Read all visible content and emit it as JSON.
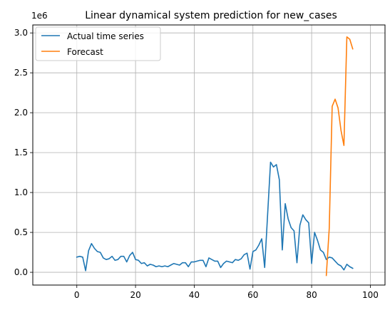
{
  "chart_data": {
    "type": "line",
    "title": "Linear dynamical system prediction for new_cases",
    "xlabel": "",
    "ylabel": "",
    "y_offset_text": "1e6",
    "xlim": [
      -15,
      105
    ],
    "ylim": [
      -0.16,
      3.1
    ],
    "x_ticks": [
      0,
      20,
      40,
      60,
      80,
      100
    ],
    "x_tick_labels": [
      "0",
      "20",
      "40",
      "60",
      "80",
      "100"
    ],
    "y_ticks": [
      0.0,
      0.5,
      1.0,
      1.5,
      2.0,
      2.5,
      3.0
    ],
    "y_tick_labels": [
      "0.0",
      "0.5",
      "1.0",
      "1.5",
      "2.0",
      "2.5",
      "3.0"
    ],
    "grid": true,
    "legend_position": "top-left",
    "series": [
      {
        "name": "Actual time series",
        "color": "#1f77b4",
        "x": [
          0,
          1,
          2,
          3,
          4,
          5,
          6,
          7,
          8,
          9,
          10,
          11,
          12,
          13,
          14,
          15,
          16,
          17,
          18,
          19,
          20,
          21,
          22,
          23,
          24,
          25,
          26,
          27,
          28,
          29,
          30,
          31,
          32,
          33,
          34,
          35,
          36,
          37,
          38,
          39,
          40,
          41,
          42,
          43,
          44,
          45,
          46,
          47,
          48,
          49,
          50,
          51,
          52,
          53,
          54,
          55,
          56,
          57,
          58,
          59,
          60,
          61,
          62,
          63,
          64,
          65,
          66,
          67,
          68,
          69,
          70,
          71,
          72,
          73,
          74,
          75,
          76,
          77,
          78,
          79,
          80,
          81,
          82,
          83,
          84,
          85,
          86,
          87,
          88,
          89,
          90,
          91,
          92,
          93,
          94
        ],
        "y": [
          0.19,
          0.2,
          0.19,
          0.02,
          0.27,
          0.36,
          0.3,
          0.26,
          0.25,
          0.18,
          0.16,
          0.17,
          0.2,
          0.15,
          0.16,
          0.2,
          0.2,
          0.13,
          0.21,
          0.25,
          0.16,
          0.15,
          0.11,
          0.12,
          0.08,
          0.1,
          0.09,
          0.07,
          0.08,
          0.07,
          0.08,
          0.07,
          0.09,
          0.11,
          0.1,
          0.09,
          0.12,
          0.12,
          0.07,
          0.13,
          0.13,
          0.14,
          0.15,
          0.15,
          0.07,
          0.18,
          0.16,
          0.14,
          0.14,
          0.06,
          0.11,
          0.14,
          0.13,
          0.12,
          0.16,
          0.15,
          0.17,
          0.22,
          0.24,
          0.04,
          0.26,
          0.28,
          0.34,
          0.42,
          0.06,
          0.72,
          1.38,
          1.32,
          1.35,
          1.16,
          0.28,
          0.86,
          0.67,
          0.56,
          0.52,
          0.12,
          0.59,
          0.72,
          0.66,
          0.62,
          0.11,
          0.5,
          0.4,
          0.28,
          0.25,
          0.16,
          0.19,
          0.18,
          0.14,
          0.1,
          0.08,
          0.03,
          0.1,
          0.07,
          0.05
        ]
      },
      {
        "name": "Forecast",
        "color": "#ff7f0e",
        "x": [
          85,
          86,
          87,
          88,
          89,
          90,
          91,
          92,
          93,
          94
        ],
        "y": [
          -0.04,
          0.55,
          2.08,
          2.17,
          2.06,
          1.78,
          1.59,
          2.95,
          2.92,
          2.8
        ]
      }
    ]
  }
}
